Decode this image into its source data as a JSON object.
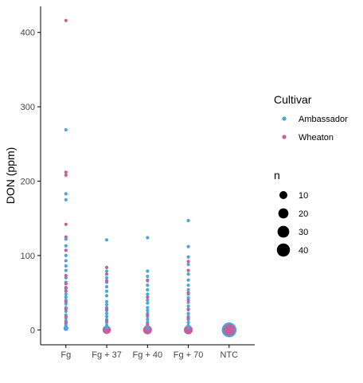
{
  "chart_data": {
    "type": "scatter",
    "ylabel": "DON (ppm)",
    "xlabel": "",
    "categories": [
      "Fg",
      "Fg + 37",
      "Fg + 40",
      "Fg + 70",
      "NTC"
    ],
    "y_ticks": [
      0,
      100,
      200,
      300,
      400
    ],
    "ylim": [
      -20,
      435
    ],
    "grid": false,
    "legend_placement": "right",
    "colors": {
      "Ambassador": "#4aa6dc",
      "Wheaton": "#c3619b",
      "size_legend": "#000000"
    },
    "series": [
      {
        "name": "Ambassador",
        "points": [
          {
            "x": "Fg",
            "y": 269,
            "n": 1
          },
          {
            "x": "Fg",
            "y": 183,
            "n": 1
          },
          {
            "x": "Fg",
            "y": 175,
            "n": 1
          },
          {
            "x": "Fg",
            "y": 122,
            "n": 1
          },
          {
            "x": "Fg",
            "y": 113,
            "n": 1
          },
          {
            "x": "Fg",
            "y": 100,
            "n": 1
          },
          {
            "x": "Fg",
            "y": 93,
            "n": 1
          },
          {
            "x": "Fg",
            "y": 86,
            "n": 1
          },
          {
            "x": "Fg",
            "y": 80,
            "n": 1
          },
          {
            "x": "Fg",
            "y": 70,
            "n": 1
          },
          {
            "x": "Fg",
            "y": 64,
            "n": 1
          },
          {
            "x": "Fg",
            "y": 55,
            "n": 1
          },
          {
            "x": "Fg",
            "y": 48,
            "n": 1
          },
          {
            "x": "Fg",
            "y": 44,
            "n": 1
          },
          {
            "x": "Fg",
            "y": 40,
            "n": 1
          },
          {
            "x": "Fg",
            "y": 35,
            "n": 1
          },
          {
            "x": "Fg",
            "y": 30,
            "n": 1
          },
          {
            "x": "Fg",
            "y": 25,
            "n": 1
          },
          {
            "x": "Fg",
            "y": 20,
            "n": 1
          },
          {
            "x": "Fg",
            "y": 16,
            "n": 1
          },
          {
            "x": "Fg",
            "y": 12,
            "n": 1
          },
          {
            "x": "Fg",
            "y": 8,
            "n": 1
          },
          {
            "x": "Fg",
            "y": 5,
            "n": 1
          },
          {
            "x": "Fg",
            "y": 2,
            "n": 2
          },
          {
            "x": "Fg + 37",
            "y": 121,
            "n": 1
          },
          {
            "x": "Fg + 37",
            "y": 79,
            "n": 1
          },
          {
            "x": "Fg + 37",
            "y": 70,
            "n": 1
          },
          {
            "x": "Fg + 37",
            "y": 64,
            "n": 1
          },
          {
            "x": "Fg + 37",
            "y": 58,
            "n": 1
          },
          {
            "x": "Fg + 37",
            "y": 52,
            "n": 1
          },
          {
            "x": "Fg + 37",
            "y": 46,
            "n": 1
          },
          {
            "x": "Fg + 37",
            "y": 38,
            "n": 1
          },
          {
            "x": "Fg + 37",
            "y": 34,
            "n": 1
          },
          {
            "x": "Fg + 37",
            "y": 30,
            "n": 1
          },
          {
            "x": "Fg + 37",
            "y": 26,
            "n": 1
          },
          {
            "x": "Fg + 37",
            "y": 22,
            "n": 1
          },
          {
            "x": "Fg + 37",
            "y": 18,
            "n": 1
          },
          {
            "x": "Fg + 37",
            "y": 14,
            "n": 1
          },
          {
            "x": "Fg + 37",
            "y": 10,
            "n": 1
          },
          {
            "x": "Fg + 37",
            "y": 6,
            "n": 1
          },
          {
            "x": "Fg + 37",
            "y": 3,
            "n": 1
          },
          {
            "x": "Fg + 40",
            "y": 124,
            "n": 1
          },
          {
            "x": "Fg + 40",
            "y": 79,
            "n": 1
          },
          {
            "x": "Fg + 40",
            "y": 72,
            "n": 1
          },
          {
            "x": "Fg + 40",
            "y": 66,
            "n": 1
          },
          {
            "x": "Fg + 40",
            "y": 60,
            "n": 1
          },
          {
            "x": "Fg + 40",
            "y": 54,
            "n": 1
          },
          {
            "x": "Fg + 40",
            "y": 48,
            "n": 1
          },
          {
            "x": "Fg + 40",
            "y": 40,
            "n": 1
          },
          {
            "x": "Fg + 40",
            "y": 36,
            "n": 1
          },
          {
            "x": "Fg + 40",
            "y": 30,
            "n": 1
          },
          {
            "x": "Fg + 40",
            "y": 26,
            "n": 1
          },
          {
            "x": "Fg + 40",
            "y": 22,
            "n": 1
          },
          {
            "x": "Fg + 40",
            "y": 18,
            "n": 1
          },
          {
            "x": "Fg + 40",
            "y": 14,
            "n": 1
          },
          {
            "x": "Fg + 40",
            "y": 10,
            "n": 1
          },
          {
            "x": "Fg + 40",
            "y": 6,
            "n": 1
          },
          {
            "x": "Fg + 40",
            "y": 2,
            "n": 1
          },
          {
            "x": "Fg + 70",
            "y": 147,
            "n": 1
          },
          {
            "x": "Fg + 70",
            "y": 112,
            "n": 1
          },
          {
            "x": "Fg + 70",
            "y": 98,
            "n": 1
          },
          {
            "x": "Fg + 70",
            "y": 88,
            "n": 1
          },
          {
            "x": "Fg + 70",
            "y": 75,
            "n": 1
          },
          {
            "x": "Fg + 70",
            "y": 67,
            "n": 1
          },
          {
            "x": "Fg + 70",
            "y": 60,
            "n": 1
          },
          {
            "x": "Fg + 70",
            "y": 54,
            "n": 1
          },
          {
            "x": "Fg + 70",
            "y": 48,
            "n": 1
          },
          {
            "x": "Fg + 70",
            "y": 43,
            "n": 1
          },
          {
            "x": "Fg + 70",
            "y": 37,
            "n": 1
          },
          {
            "x": "Fg + 70",
            "y": 32,
            "n": 1
          },
          {
            "x": "Fg + 70",
            "y": 27,
            "n": 1
          },
          {
            "x": "Fg + 70",
            "y": 22,
            "n": 1
          },
          {
            "x": "Fg + 70",
            "y": 18,
            "n": 1
          },
          {
            "x": "Fg + 70",
            "y": 14,
            "n": 1
          },
          {
            "x": "Fg + 70",
            "y": 10,
            "n": 1
          },
          {
            "x": "Fg + 70",
            "y": 6,
            "n": 1
          },
          {
            "x": "Fg + 70",
            "y": 3,
            "n": 1
          },
          {
            "x": "NTC",
            "y": 0,
            "n": 48
          }
        ]
      },
      {
        "name": "Wheaton",
        "points": [
          {
            "x": "Fg",
            "y": 416,
            "n": 1
          },
          {
            "x": "Fg",
            "y": 212,
            "n": 1
          },
          {
            "x": "Fg",
            "y": 208,
            "n": 1
          },
          {
            "x": "Fg",
            "y": 142,
            "n": 1
          },
          {
            "x": "Fg",
            "y": 125,
            "n": 1
          },
          {
            "x": "Fg",
            "y": 107,
            "n": 1
          },
          {
            "x": "Fg",
            "y": 73,
            "n": 1
          },
          {
            "x": "Fg",
            "y": 62,
            "n": 1
          },
          {
            "x": "Fg",
            "y": 57,
            "n": 1
          },
          {
            "x": "Fg",
            "y": 52,
            "n": 1
          },
          {
            "x": "Fg",
            "y": 38,
            "n": 1
          },
          {
            "x": "Fg",
            "y": 28,
            "n": 1
          },
          {
            "x": "Fg",
            "y": 18,
            "n": 1
          },
          {
            "x": "Fg",
            "y": 10,
            "n": 1
          },
          {
            "x": "Fg + 37",
            "y": 84,
            "n": 1
          },
          {
            "x": "Fg + 37",
            "y": 75,
            "n": 1
          },
          {
            "x": "Fg + 37",
            "y": 66,
            "n": 1
          },
          {
            "x": "Fg + 37",
            "y": 28,
            "n": 1
          },
          {
            "x": "Fg + 37",
            "y": 12,
            "n": 1
          },
          {
            "x": "Fg + 37",
            "y": 0,
            "n": 10
          },
          {
            "x": "Fg + 40",
            "y": 67,
            "n": 1
          },
          {
            "x": "Fg + 40",
            "y": 44,
            "n": 1
          },
          {
            "x": "Fg + 40",
            "y": 20,
            "n": 1
          },
          {
            "x": "Fg + 40",
            "y": 8,
            "n": 1
          },
          {
            "x": "Fg + 40",
            "y": 0,
            "n": 12
          },
          {
            "x": "Fg + 70",
            "y": 92,
            "n": 1
          },
          {
            "x": "Fg + 70",
            "y": 80,
            "n": 1
          },
          {
            "x": "Fg + 70",
            "y": 50,
            "n": 1
          },
          {
            "x": "Fg + 70",
            "y": 40,
            "n": 1
          },
          {
            "x": "Fg + 70",
            "y": 28,
            "n": 1
          },
          {
            "x": "Fg + 70",
            "y": 16,
            "n": 1
          },
          {
            "x": "Fg + 70",
            "y": 0,
            "n": 12
          },
          {
            "x": "NTC",
            "y": 0,
            "n": 24
          }
        ]
      }
    ],
    "legend_color": {
      "title": "Cultivar",
      "entries": [
        "Ambassador",
        "Wheaton"
      ]
    },
    "legend_size": {
      "title": "n",
      "entries": [
        {
          "label": "10",
          "n": 10
        },
        {
          "label": "20",
          "n": 20
        },
        {
          "label": "30",
          "n": 30
        },
        {
          "label": "40",
          "n": 40
        }
      ]
    }
  }
}
